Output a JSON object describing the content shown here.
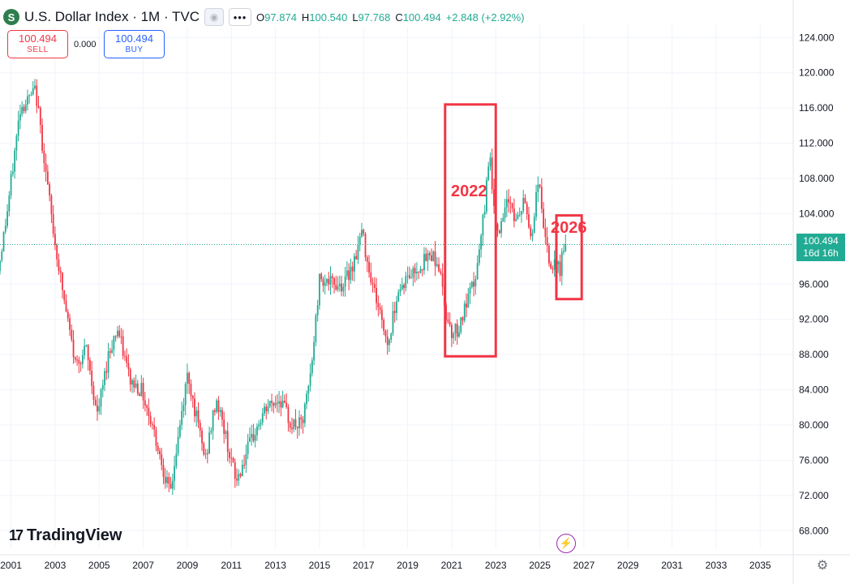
{
  "header": {
    "symbol_icon": "S",
    "title": "U.S. Dollar Index · 1M · TVC",
    "open": "97.874",
    "high": "100.540",
    "low": "97.768",
    "close": "100.494",
    "change": "+2.848 (+2.92%)",
    "visibility_icon": "eye-icon",
    "more_icon": "ellipsis-icon"
  },
  "trade": {
    "sell_price": "100.494",
    "sell_label": "SELL",
    "spread": "0.000",
    "buy_price": "100.494",
    "buy_label": "BUY"
  },
  "price_tag": {
    "price": "100.494",
    "countdown": "16d 16h"
  },
  "branding": {
    "logo_mark": "17",
    "name": "TradingView"
  },
  "annotations": {
    "label_2022": "2022",
    "label_2026": "2026"
  },
  "colors": {
    "up": "#22ab94",
    "down": "#f23645",
    "annotation": "#f23645",
    "grid": "#f0f3fa"
  },
  "chart_data": {
    "type": "candlestick",
    "title": "U.S. Dollar Index · 1M · TVC",
    "xlim": [
      2000.5,
      2036.5
    ],
    "ylim": [
      66,
      125.5
    ],
    "grid": true,
    "y_ticks": [
      "68.000",
      "72.000",
      "76.000",
      "80.000",
      "84.000",
      "88.000",
      "92.000",
      "96.000",
      "104.000",
      "108.000",
      "112.000",
      "116.000",
      "120.000",
      "124.000"
    ],
    "x_ticks": [
      "2001",
      "2003",
      "2005",
      "2007",
      "2009",
      "2011",
      "2013",
      "2015",
      "2017",
      "2019",
      "2021",
      "2023",
      "2025",
      "2027",
      "2029",
      "2031",
      "2033",
      "2035"
    ],
    "last_price": 100.494,
    "price_path": [
      [
        2000.5,
        97.5
      ],
      [
        2000.9,
        104
      ],
      [
        2001.2,
        110
      ],
      [
        2001.5,
        116
      ],
      [
        2001.9,
        117
      ],
      [
        2002.2,
        118
      ],
      [
        2002.6,
        110
      ],
      [
        2003.0,
        102
      ],
      [
        2003.5,
        94
      ],
      [
        2004.0,
        87
      ],
      [
        2004.5,
        88.5
      ],
      [
        2005.0,
        81
      ],
      [
        2005.5,
        88
      ],
      [
        2005.9,
        91
      ],
      [
        2006.5,
        85
      ],
      [
        2007.0,
        84
      ],
      [
        2007.5,
        80
      ],
      [
        2007.9,
        76
      ],
      [
        2008.3,
        72
      ],
      [
        2008.7,
        79
      ],
      [
        2009.1,
        86
      ],
      [
        2009.4,
        82
      ],
      [
        2009.9,
        76
      ],
      [
        2010.4,
        83
      ],
      [
        2010.8,
        79
      ],
      [
        2011.3,
        73.5
      ],
      [
        2011.8,
        77
      ],
      [
        2012.3,
        80
      ],
      [
        2012.7,
        82
      ],
      [
        2013.3,
        83
      ],
      [
        2013.8,
        80
      ],
      [
        2014.3,
        80
      ],
      [
        2014.7,
        86
      ],
      [
        2015.1,
        97
      ],
      [
        2015.6,
        96
      ],
      [
        2016.2,
        96
      ],
      [
        2016.7,
        99
      ],
      [
        2017.0,
        102
      ],
      [
        2017.4,
        97
      ],
      [
        2017.9,
        92
      ],
      [
        2018.2,
        89
      ],
      [
        2018.6,
        95
      ],
      [
        2019.0,
        96.5
      ],
      [
        2019.6,
        98
      ],
      [
        2020.2,
        99.5
      ],
      [
        2020.5,
        98
      ],
      [
        2020.8,
        93
      ],
      [
        2021.1,
        90.5
      ],
      [
        2021.4,
        91
      ],
      [
        2021.8,
        94
      ],
      [
        2022.2,
        97
      ],
      [
        2022.6,
        105
      ],
      [
        2022.8,
        112
      ],
      [
        2023.0,
        104
      ],
      [
        2023.3,
        102
      ],
      [
        2023.7,
        106
      ],
      [
        2024.0,
        103
      ],
      [
        2024.4,
        105.5
      ],
      [
        2024.7,
        101
      ],
      [
        2025.0,
        108
      ],
      [
        2025.2,
        104
      ],
      [
        2025.5,
        98
      ],
      [
        2025.8,
        98
      ],
      [
        2026.0,
        97.5
      ],
      [
        2026.15,
        100.494
      ]
    ],
    "annotations": [
      {
        "label": "2022",
        "type": "box",
        "x_range": [
          2020.7,
          2023.0
        ],
        "y_range": [
          87.8,
          116.4
        ]
      },
      {
        "label": "2026",
        "type": "box",
        "x_range": [
          2025.75,
          2026.9
        ],
        "y_range": [
          94.3,
          103.8
        ]
      }
    ]
  }
}
